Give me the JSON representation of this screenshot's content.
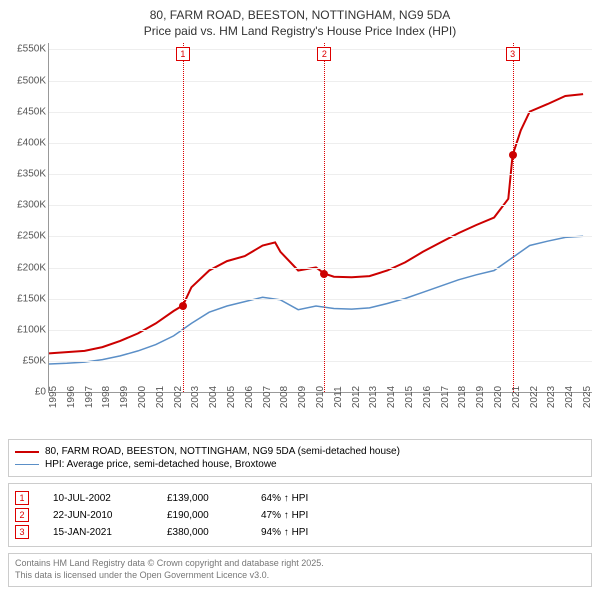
{
  "title_line1": "80, FARM ROAD, BEESTON, NOTTINGHAM, NG9 5DA",
  "title_line2": "Price paid vs. HM Land Registry's House Price Index (HPI)",
  "chart": {
    "type": "line",
    "xlim": [
      1995,
      2025.5
    ],
    "ylim": [
      0,
      560
    ],
    "background_color": "#ffffff",
    "grid_color": "#eeeeee",
    "axis_color": "#999999",
    "tick_fontsize": 10,
    "tick_color": "#555555",
    "y_ticks": [
      0,
      50,
      100,
      150,
      200,
      250,
      300,
      350,
      400,
      450,
      500,
      550
    ],
    "y_tick_labels": [
      "£0",
      "£50K",
      "£100K",
      "£150K",
      "£200K",
      "£250K",
      "£300K",
      "£350K",
      "£400K",
      "£450K",
      "£500K",
      "£550K"
    ],
    "x_ticks": [
      1995,
      1996,
      1997,
      1998,
      1999,
      2000,
      2001,
      2002,
      2003,
      2004,
      2005,
      2006,
      2007,
      2008,
      2009,
      2010,
      2011,
      2012,
      2013,
      2014,
      2015,
      2016,
      2017,
      2018,
      2019,
      2020,
      2021,
      2022,
      2023,
      2024,
      2025
    ],
    "series": [
      {
        "name": "price_paid",
        "label": "80, FARM ROAD, BEESTON, NOTTINGHAM, NG9 5DA (semi-detached house)",
        "color": "#cc0000",
        "line_width": 2,
        "data": [
          [
            1995,
            62
          ],
          [
            1996,
            64
          ],
          [
            1997,
            66
          ],
          [
            1998,
            72
          ],
          [
            1999,
            82
          ],
          [
            2000,
            94
          ],
          [
            2001,
            110
          ],
          [
            2002,
            130
          ],
          [
            2002.52,
            139
          ],
          [
            2003,
            168
          ],
          [
            2004,
            195
          ],
          [
            2005,
            210
          ],
          [
            2006,
            218
          ],
          [
            2007,
            235
          ],
          [
            2007.7,
            240
          ],
          [
            2008,
            225
          ],
          [
            2009,
            195
          ],
          [
            2010,
            200
          ],
          [
            2010.47,
            190
          ],
          [
            2011,
            185
          ],
          [
            2012,
            184
          ],
          [
            2013,
            186
          ],
          [
            2014,
            195
          ],
          [
            2015,
            208
          ],
          [
            2016,
            225
          ],
          [
            2017,
            240
          ],
          [
            2018,
            255
          ],
          [
            2019,
            268
          ],
          [
            2020,
            280
          ],
          [
            2020.8,
            310
          ],
          [
            2021.04,
            380
          ],
          [
            2021.5,
            420
          ],
          [
            2022,
            450
          ],
          [
            2023,
            462
          ],
          [
            2024,
            475
          ],
          [
            2025,
            478
          ]
        ]
      },
      {
        "name": "hpi",
        "label": "HPI: Average price, semi-detached house, Broxtowe",
        "color": "#5b8fc7",
        "line_width": 1.5,
        "data": [
          [
            1995,
            45
          ],
          [
            1996,
            46
          ],
          [
            1997,
            48
          ],
          [
            1998,
            52
          ],
          [
            1999,
            58
          ],
          [
            2000,
            66
          ],
          [
            2001,
            76
          ],
          [
            2002,
            90
          ],
          [
            2003,
            110
          ],
          [
            2004,
            128
          ],
          [
            2005,
            138
          ],
          [
            2006,
            145
          ],
          [
            2007,
            152
          ],
          [
            2008,
            148
          ],
          [
            2009,
            132
          ],
          [
            2010,
            138
          ],
          [
            2011,
            134
          ],
          [
            2012,
            133
          ],
          [
            2013,
            135
          ],
          [
            2014,
            142
          ],
          [
            2015,
            150
          ],
          [
            2016,
            160
          ],
          [
            2017,
            170
          ],
          [
            2018,
            180
          ],
          [
            2019,
            188
          ],
          [
            2020,
            195
          ],
          [
            2021,
            215
          ],
          [
            2022,
            235
          ],
          [
            2023,
            242
          ],
          [
            2024,
            248
          ],
          [
            2025,
            250
          ]
        ]
      }
    ],
    "event_markers": [
      {
        "n": "1",
        "x": 2002.52,
        "y": 139
      },
      {
        "n": "2",
        "x": 2010.47,
        "y": 190
      },
      {
        "n": "3",
        "x": 2021.04,
        "y": 380
      }
    ],
    "marker_line_color": "#dd0000",
    "marker_box_border": "#dd0000",
    "marker_box_text_color": "#dd0000",
    "marker_dot_color": "#cc0000"
  },
  "legend": {
    "items": [
      {
        "color": "#cc0000",
        "width": 2,
        "label_path": "chart.series.0.label"
      },
      {
        "color": "#5b8fc7",
        "width": 1.5,
        "label_path": "chart.series.1.label"
      }
    ]
  },
  "events_table": [
    {
      "n": "1",
      "date": "10-JUL-2002",
      "price": "£139,000",
      "delta": "64% ↑ HPI"
    },
    {
      "n": "2",
      "date": "22-JUN-2010",
      "price": "£190,000",
      "delta": "47% ↑ HPI"
    },
    {
      "n": "3",
      "date": "15-JAN-2021",
      "price": "£380,000",
      "delta": "94% ↑ HPI"
    }
  ],
  "footnote_line1": "Contains HM Land Registry data © Crown copyright and database right 2025.",
  "footnote_line2": "This data is licensed under the Open Government Licence v3.0."
}
